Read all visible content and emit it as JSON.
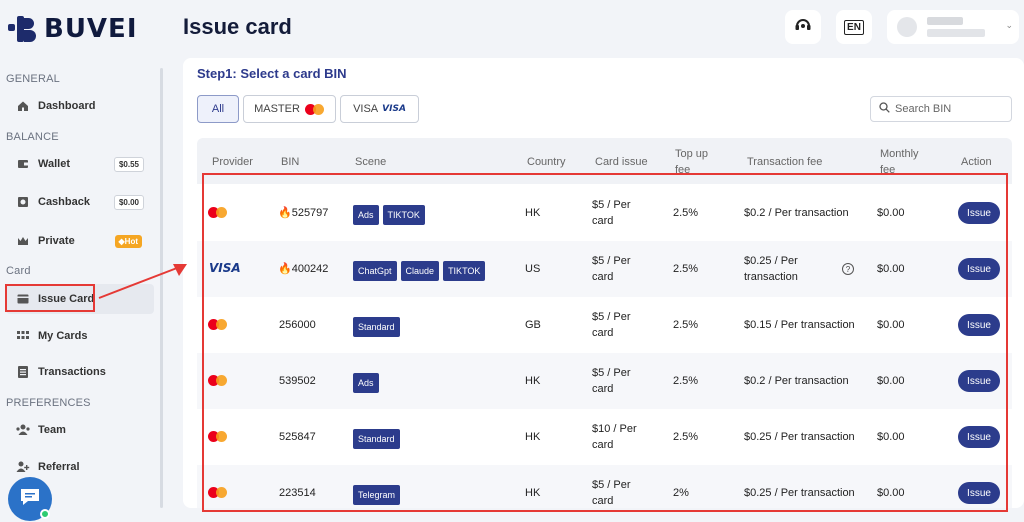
{
  "brand": {
    "name": "BUVEI"
  },
  "header": {
    "title": "Issue card",
    "lang": "EN"
  },
  "sidebar": {
    "sections": [
      {
        "label": "GENERAL"
      },
      {
        "label": "BALANCE"
      },
      {
        "label": "Card"
      },
      {
        "label": "PREFERENCES"
      }
    ],
    "items": [
      {
        "label": "Dashboard",
        "icon": "home-icon"
      },
      {
        "label": "Wallet",
        "icon": "wallet-icon",
        "badge": "$0.55"
      },
      {
        "label": "Cashback",
        "icon": "cashback-icon",
        "badge": "$0.00"
      },
      {
        "label": "Private",
        "icon": "crown-icon",
        "badge": "◆Hot"
      },
      {
        "label": "Issue Card",
        "icon": "card-icon"
      },
      {
        "label": "My Cards",
        "icon": "grid-icon"
      },
      {
        "label": "Transactions",
        "icon": "list-icon"
      },
      {
        "label": "Team",
        "icon": "team-icon"
      },
      {
        "label": "Referral",
        "icon": "referral-icon"
      }
    ]
  },
  "main": {
    "step_title": "Step1: Select a card BIN",
    "filters": [
      {
        "label": "All"
      },
      {
        "label": "MASTER"
      },
      {
        "label": "VISA",
        "logo": "VISA"
      }
    ],
    "search_placeholder": "Search BIN",
    "columns": [
      "Provider",
      "BIN",
      "Scene",
      "Country",
      "Card issue",
      "Top up fee",
      "Transaction fee",
      "Monthly fee",
      "Action"
    ],
    "rows": [
      {
        "provider": "mastercard",
        "bin": "525797",
        "hot": true,
        "tags": [
          "Ads",
          "TIKTOK"
        ],
        "country": "HK",
        "card_issue": "$5 / Per card",
        "topup": "2.5%",
        "tx_fee": "$0.2 / Per transaction",
        "monthly": "$0.00",
        "action": "Issue"
      },
      {
        "provider": "visa",
        "provider_label": "VISA",
        "bin": "400242",
        "hot": true,
        "tags": [
          "ChatGpt",
          "Claude",
          "TIKTOK"
        ],
        "country": "US",
        "card_issue": "$5 / Per card",
        "topup": "2.5%",
        "tx_fee": "$0.25 / Per transaction",
        "tx_help": "?",
        "monthly": "$0.00",
        "action": "Issue"
      },
      {
        "provider": "mastercard",
        "bin": "256000",
        "hot": false,
        "tags": [
          "Standard"
        ],
        "country": "GB",
        "card_issue": "$5 / Per card",
        "topup": "2.5%",
        "tx_fee": "$0.15 / Per transaction",
        "monthly": "$0.00",
        "action": "Issue"
      },
      {
        "provider": "mastercard",
        "bin": "539502",
        "hot": false,
        "tags": [
          "Ads"
        ],
        "country": "HK",
        "card_issue": "$5 / Per card",
        "topup": "2.5%",
        "tx_fee": "$0.2 / Per transaction",
        "monthly": "$0.00",
        "action": "Issue"
      },
      {
        "provider": "mastercard",
        "bin": "525847",
        "hot": false,
        "tags": [
          "Standard"
        ],
        "country": "HK",
        "card_issue": "$10 / Per card",
        "topup": "2.5%",
        "tx_fee": "$0.25 / Per transaction",
        "monthly": "$0.00",
        "action": "Issue"
      },
      {
        "provider": "mastercard",
        "bin": "223514",
        "hot": false,
        "tags": [
          "Telegram"
        ],
        "country": "HK",
        "card_issue": "$5 / Per card",
        "topup": "2%",
        "tx_fee": "$0.25 / Per transaction",
        "monthly": "$0.00",
        "action": "Issue"
      }
    ]
  },
  "colors": {
    "accent": "#2c3c8c",
    "annotation": "#e53935",
    "hot_badge": "#f5a623"
  }
}
